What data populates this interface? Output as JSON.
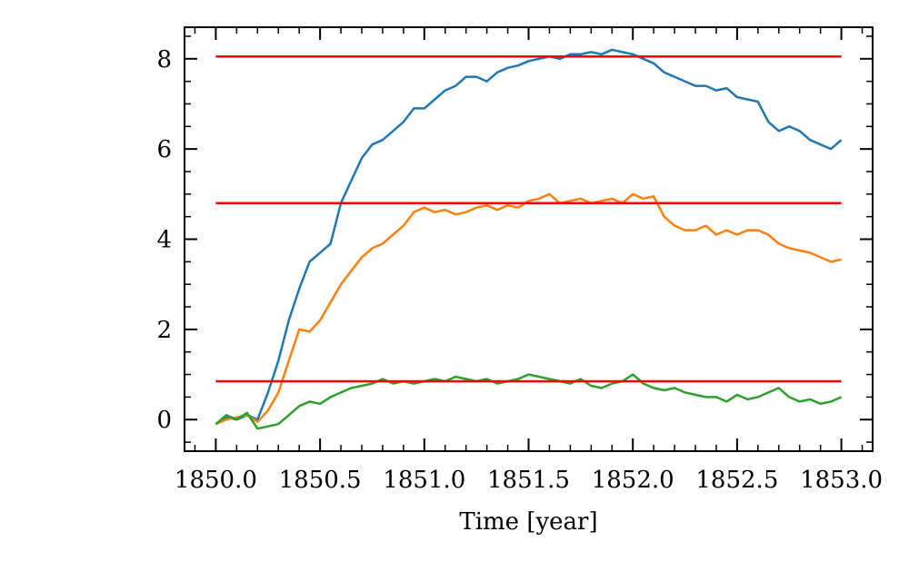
{
  "chart_data": {
    "type": "line",
    "title": "",
    "xlabel": "Time [year]",
    "ylabel": "",
    "xlim": [
      1849.85,
      1853.15
    ],
    "ylim": [
      -0.7,
      8.7
    ],
    "x_ticks": [
      1850.0,
      1850.5,
      1851.0,
      1851.5,
      1852.0,
      1852.5,
      1853.0
    ],
    "x_tick_labels": [
      "1850.0",
      "1850.5",
      "1851.0",
      "1851.5",
      "1852.0",
      "1852.5",
      "1853.0"
    ],
    "y_ticks": [
      0,
      2,
      4,
      6,
      8
    ],
    "y_tick_labels": [
      "0",
      "2",
      "4",
      "6",
      "8"
    ],
    "grid": false,
    "legend": "none",
    "series": [
      {
        "color": "#1f77b4",
        "x": [
          1850.0,
          1850.05,
          1850.1,
          1850.15,
          1850.2,
          1850.25,
          1850.3,
          1850.35,
          1850.4,
          1850.45,
          1850.5,
          1850.55,
          1850.6,
          1850.65,
          1850.7,
          1850.75,
          1850.8,
          1850.85,
          1850.9,
          1850.95,
          1851.0,
          1851.05,
          1851.1,
          1851.15,
          1851.2,
          1851.25,
          1851.3,
          1851.35,
          1851.4,
          1851.45,
          1851.5,
          1851.55,
          1851.6,
          1851.65,
          1851.7,
          1851.75,
          1851.8,
          1851.85,
          1851.9,
          1851.95,
          1852.0,
          1852.05,
          1852.1,
          1852.15,
          1852.2,
          1852.25,
          1852.3,
          1852.35,
          1852.4,
          1852.45,
          1852.5,
          1852.55,
          1852.6,
          1852.65,
          1852.7,
          1852.75,
          1852.8,
          1852.85,
          1852.9,
          1852.95,
          1853.0
        ],
        "values": [
          -0.1,
          0.05,
          0.0,
          0.1,
          0.0,
          0.6,
          1.3,
          2.2,
          2.9,
          3.5,
          3.7,
          3.9,
          4.8,
          5.3,
          5.8,
          6.1,
          6.2,
          6.4,
          6.6,
          6.9,
          6.9,
          7.1,
          7.3,
          7.4,
          7.6,
          7.6,
          7.5,
          7.7,
          7.8,
          7.85,
          7.95,
          8.0,
          8.05,
          8.0,
          8.1,
          8.1,
          8.15,
          8.1,
          8.2,
          8.15,
          8.1,
          8.0,
          7.9,
          7.7,
          7.6,
          7.5,
          7.4,
          7.4,
          7.3,
          7.35,
          7.15,
          7.1,
          7.05,
          6.6,
          6.4,
          6.5,
          6.4,
          6.2,
          6.1,
          6.0,
          6.2
        ]
      },
      {
        "color": "#ff7f0e",
        "x": [
          1850.0,
          1850.05,
          1850.1,
          1850.15,
          1850.2,
          1850.25,
          1850.3,
          1850.35,
          1850.4,
          1850.45,
          1850.5,
          1850.55,
          1850.6,
          1850.65,
          1850.7,
          1850.75,
          1850.8,
          1850.85,
          1850.9,
          1850.95,
          1851.0,
          1851.05,
          1851.1,
          1851.15,
          1851.2,
          1851.25,
          1851.3,
          1851.35,
          1851.4,
          1851.45,
          1851.5,
          1851.55,
          1851.6,
          1851.65,
          1851.7,
          1851.75,
          1851.8,
          1851.85,
          1851.9,
          1851.95,
          1852.0,
          1852.05,
          1852.1,
          1852.15,
          1852.2,
          1852.25,
          1852.3,
          1852.35,
          1852.4,
          1852.45,
          1852.5,
          1852.55,
          1852.6,
          1852.65,
          1852.7,
          1852.75,
          1852.8,
          1852.85,
          1852.9,
          1852.95,
          1853.0
        ],
        "values": [
          -0.1,
          0.0,
          0.05,
          0.1,
          -0.05,
          0.2,
          0.6,
          1.3,
          2.0,
          1.95,
          2.2,
          2.6,
          3.0,
          3.3,
          3.6,
          3.8,
          3.9,
          4.1,
          4.3,
          4.6,
          4.7,
          4.6,
          4.65,
          4.55,
          4.6,
          4.7,
          4.75,
          4.65,
          4.75,
          4.7,
          4.85,
          4.9,
          5.0,
          4.8,
          4.85,
          4.9,
          4.8,
          4.85,
          4.9,
          4.8,
          5.0,
          4.9,
          4.95,
          4.5,
          4.3,
          4.2,
          4.2,
          4.3,
          4.1,
          4.2,
          4.1,
          4.2,
          4.2,
          4.1,
          3.9,
          3.8,
          3.75,
          3.7,
          3.6,
          3.5,
          3.55
        ]
      },
      {
        "color": "#2ca02c",
        "x": [
          1850.0,
          1850.05,
          1850.1,
          1850.15,
          1850.2,
          1850.25,
          1850.3,
          1850.35,
          1850.4,
          1850.45,
          1850.5,
          1850.55,
          1850.6,
          1850.65,
          1850.7,
          1850.75,
          1850.8,
          1850.85,
          1850.9,
          1850.95,
          1851.0,
          1851.05,
          1851.1,
          1851.15,
          1851.2,
          1851.25,
          1851.3,
          1851.35,
          1851.4,
          1851.45,
          1851.5,
          1851.55,
          1851.6,
          1851.65,
          1851.7,
          1851.75,
          1851.8,
          1851.85,
          1851.9,
          1851.95,
          1852.0,
          1852.05,
          1852.1,
          1852.15,
          1852.2,
          1852.25,
          1852.3,
          1852.35,
          1852.4,
          1852.45,
          1852.5,
          1852.55,
          1852.6,
          1852.65,
          1852.7,
          1852.75,
          1852.8,
          1852.85,
          1852.9,
          1852.95,
          1853.0
        ],
        "values": [
          -0.1,
          0.1,
          0.0,
          0.15,
          -0.2,
          -0.15,
          -0.1,
          0.1,
          0.3,
          0.4,
          0.35,
          0.5,
          0.6,
          0.7,
          0.75,
          0.8,
          0.9,
          0.8,
          0.85,
          0.8,
          0.85,
          0.9,
          0.85,
          0.95,
          0.9,
          0.85,
          0.9,
          0.8,
          0.85,
          0.9,
          1.0,
          0.95,
          0.9,
          0.85,
          0.8,
          0.9,
          0.75,
          0.7,
          0.8,
          0.85,
          1.0,
          0.8,
          0.7,
          0.65,
          0.7,
          0.6,
          0.55,
          0.5,
          0.5,
          0.4,
          0.55,
          0.45,
          0.5,
          0.6,
          0.7,
          0.5,
          0.4,
          0.45,
          0.35,
          0.4,
          0.5
        ]
      },
      {
        "color": "#ff0000",
        "x": [
          1850.0,
          1853.0
        ],
        "values": [
          8.05,
          8.05
        ]
      },
      {
        "color": "#ff0000",
        "x": [
          1850.0,
          1853.0
        ],
        "values": [
          4.8,
          4.8
        ]
      },
      {
        "color": "#ff0000",
        "x": [
          1850.0,
          1853.0
        ],
        "values": [
          0.85,
          0.85
        ]
      }
    ]
  }
}
